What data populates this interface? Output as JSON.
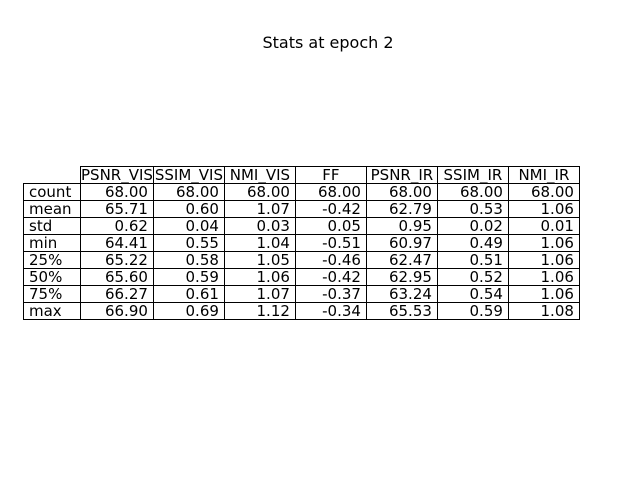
{
  "chart_data": {
    "type": "table",
    "title": "Stats at epoch 2",
    "columns": [
      "PSNR_VIS",
      "SSIM_VIS",
      "NMI_VIS",
      "FF",
      "PSNR_IR",
      "SSIM_IR",
      "NMI_IR"
    ],
    "row_labels": [
      "count",
      "mean",
      "std",
      "min",
      "25%",
      "50%",
      "75%",
      "max"
    ],
    "rows": [
      [
        "68.00",
        "68.00",
        "68.00",
        "68.00",
        "68.00",
        "68.00",
        "68.00"
      ],
      [
        "65.71",
        "0.60",
        "1.07",
        "-0.42",
        "62.79",
        "0.53",
        "1.06"
      ],
      [
        "0.62",
        "0.04",
        "0.03",
        "0.05",
        "0.95",
        "0.02",
        "0.01"
      ],
      [
        "64.41",
        "0.55",
        "1.04",
        "-0.51",
        "60.97",
        "0.49",
        "1.06"
      ],
      [
        "65.22",
        "0.58",
        "1.05",
        "-0.46",
        "62.47",
        "0.51",
        "1.06"
      ],
      [
        "65.60",
        "0.59",
        "1.06",
        "-0.42",
        "62.95",
        "0.52",
        "1.06"
      ],
      [
        "66.27",
        "0.61",
        "1.07",
        "-0.37",
        "63.24",
        "0.54",
        "1.06"
      ],
      [
        "66.90",
        "0.69",
        "1.12",
        "-0.34",
        "65.53",
        "0.59",
        "1.08"
      ]
    ]
  }
}
